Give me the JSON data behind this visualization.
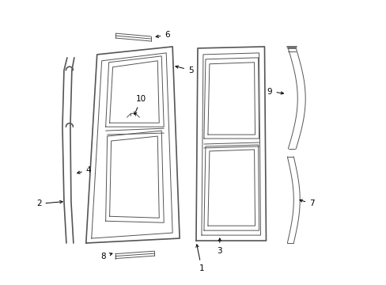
{
  "background_color": "#ffffff",
  "line_color": "#555555",
  "fig_width": 4.89,
  "fig_height": 3.6,
  "dpi": 100
}
